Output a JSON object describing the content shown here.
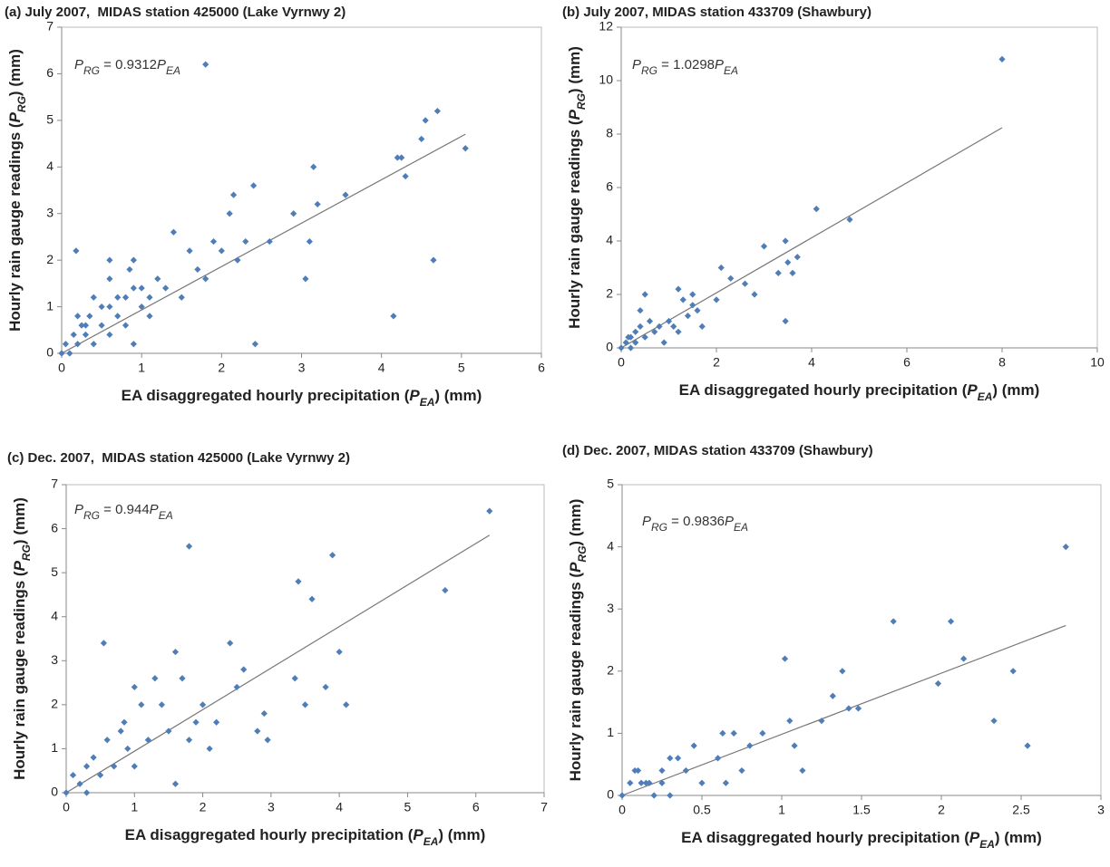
{
  "chart_data": [
    {
      "type": "scatter",
      "title": "(a) July 2007,  MIDAS station 425000 (Lake Vyrnwy 2)",
      "xlabel": [
        "EA disaggregated hourly precipitation (",
        "P",
        "EA",
        ") (mm)"
      ],
      "ylabel": [
        "Hourly rain gauge readings (",
        "P",
        "RG",
        ") (mm)"
      ],
      "fit": {
        "lhs": [
          "P",
          "RG"
        ],
        "eq": " = ",
        "slope": 0.9312,
        "rhs": [
          "P",
          "EA"
        ]
      },
      "color": "#4f7db8",
      "xlim": [
        0,
        6
      ],
      "xticks": [
        0,
        1,
        2,
        3,
        4,
        5,
        6
      ],
      "ylim": [
        0,
        7
      ],
      "yticks": [
        0,
        1,
        2,
        3,
        4,
        5,
        6,
        7
      ],
      "x": [
        0,
        0.05,
        0.1,
        0.15,
        0.2,
        0.25,
        0.3,
        0.35,
        0.4,
        0.5,
        0.6,
        0.7,
        0.8,
        0.9,
        1.0,
        1.1,
        1.2,
        0.2,
        0.3,
        0.5,
        0.6,
        0.7,
        0.8,
        0.9,
        1.0,
        0.4,
        0.6,
        0.85,
        1.3,
        1.4,
        1.5,
        1.6,
        1.7,
        1.8,
        1.9,
        2.0,
        2.1,
        2.15,
        2.2,
        2.3,
        2.4,
        2.6,
        2.9,
        3.05,
        3.1,
        3.15,
        3.2,
        3.55,
        4.15,
        4.2,
        4.25,
        4.3,
        4.5,
        4.55,
        4.65,
        4.7,
        5.05,
        1.8,
        0.18,
        2.42,
        0.6,
        0.9,
        1.1
      ],
      "y": [
        0,
        0.2,
        0,
        0.4,
        0.2,
        0.6,
        0.4,
        0.8,
        0.2,
        0.6,
        1.0,
        0.8,
        1.2,
        1.4,
        1.0,
        1.2,
        1.6,
        0.8,
        0.6,
        1.0,
        1.6,
        1.2,
        0.6,
        2.0,
        1.4,
        1.2,
        2.0,
        1.8,
        1.4,
        2.6,
        1.2,
        2.2,
        1.8,
        1.6,
        2.4,
        2.2,
        3.0,
        3.4,
        2.0,
        2.4,
        3.6,
        2.4,
        3.0,
        1.6,
        2.4,
        4.0,
        3.2,
        3.4,
        0.8,
        4.2,
        4.2,
        3.8,
        4.6,
        5.0,
        2.0,
        5.2,
        4.4,
        6.2,
        2.2,
        0.2,
        0.4,
        0.2,
        0.8
      ]
    },
    {
      "type": "scatter",
      "title": "(b) July 2007, MIDAS station 433709 (Shawbury)",
      "xlabel": [
        "EA disaggregated hourly precipitation (",
        "P",
        "EA",
        ") (mm)"
      ],
      "ylabel": [
        "Hourly rain gauge readings (",
        "P",
        "RG",
        ") (mm)"
      ],
      "fit": {
        "lhs": [
          "P",
          "RG"
        ],
        "eq": " = ",
        "slope": 1.0298,
        "rhs": [
          "P",
          "EA"
        ]
      },
      "color": "#4f7db8",
      "xlim": [
        0,
        10
      ],
      "xticks": [
        0,
        2,
        4,
        6,
        8,
        10
      ],
      "ylim": [
        0,
        12
      ],
      "yticks": [
        0,
        2,
        4,
        6,
        8,
        10,
        12
      ],
      "x": [
        0,
        0.1,
        0.2,
        0.3,
        0.4,
        0.5,
        0.6,
        0.7,
        0.8,
        0.9,
        1.0,
        1.1,
        1.2,
        1.3,
        1.4,
        1.5,
        1.6,
        1.7,
        2.1,
        2.3,
        2.6,
        2.8,
        3.0,
        3.3,
        3.45,
        3.5,
        3.6,
        3.7,
        4.1,
        4.8,
        8.0,
        0.5,
        0.3,
        1.2,
        1.5,
        3.45,
        2.0,
        0.2,
        0.15,
        0.4
      ],
      "y": [
        0,
        0.2,
        0.4,
        0.6,
        0.8,
        2.0,
        1.0,
        0.6,
        0.8,
        0.2,
        1.0,
        0.8,
        2.2,
        1.8,
        1.2,
        2.0,
        1.4,
        0.8,
        3.0,
        2.6,
        2.4,
        2.0,
        3.8,
        2.8,
        4.0,
        3.2,
        2.8,
        3.4,
        5.2,
        4.8,
        10.8,
        0.4,
        0.2,
        0.6,
        1.6,
        1.0,
        1.8,
        0,
        0.4,
        1.4
      ]
    },
    {
      "type": "scatter",
      "title": "(c) Dec. 2007,  MIDAS station 425000 (Lake Vyrnwy 2)",
      "xlabel": [
        "EA disaggregated hourly precipitation (",
        "P",
        "EA",
        ") (mm)"
      ],
      "ylabel": [
        "Hourly rain gauge readings (",
        "P",
        "RG",
        ") (mm)"
      ],
      "fit": {
        "lhs": [
          "P",
          "RG"
        ],
        "eq": " = ",
        "slope": 0.944,
        "rhs": [
          "P",
          "EA"
        ]
      },
      "color": "#4f7db8",
      "xlim": [
        0,
        7
      ],
      "xticks": [
        0,
        1,
        2,
        3,
        4,
        5,
        6,
        7
      ],
      "ylim": [
        0,
        7
      ],
      "yticks": [
        0,
        1,
        2,
        3,
        4,
        5,
        6,
        7
      ],
      "x": [
        0,
        0.1,
        0.2,
        0.3,
        0.4,
        0.5,
        0.6,
        0.7,
        0.8,
        0.9,
        1.0,
        1.1,
        1.2,
        1.3,
        1.4,
        1.5,
        1.6,
        1.7,
        1.8,
        1.9,
        2.0,
        2.1,
        2.2,
        2.4,
        2.5,
        2.6,
        2.8,
        2.9,
        2.95,
        3.35,
        3.4,
        3.5,
        3.6,
        3.8,
        3.9,
        4.0,
        4.1,
        5.55,
        6.2,
        0.55,
        1.8,
        1.6,
        1.0,
        0.3,
        0.85
      ],
      "y": [
        0,
        0.4,
        0.2,
        0.6,
        0.8,
        0.4,
        1.2,
        0.6,
        1.4,
        1.0,
        2.4,
        2.0,
        1.2,
        2.6,
        2.0,
        1.4,
        3.2,
        2.6,
        5.6,
        1.6,
        2.0,
        1.0,
        1.6,
        3.4,
        2.4,
        2.8,
        1.4,
        1.8,
        1.2,
        2.6,
        4.8,
        2.0,
        4.4,
        2.4,
        5.4,
        3.2,
        2.0,
        4.6,
        6.4,
        3.4,
        1.2,
        0.2,
        0.6,
        0,
        1.6
      ]
    },
    {
      "type": "scatter",
      "title": "(d) Dec. 2007, MIDAS station 433709 (Shawbury)",
      "xlabel": [
        "EA disaggregated hourly precipitation (",
        "P",
        "EA",
        ") (mm)"
      ],
      "ylabel": [
        "Hourly rain gauge readings (",
        "P",
        "RG",
        ") (mm)"
      ],
      "fit": {
        "lhs": [
          "P",
          "RG"
        ],
        "eq": " = ",
        "slope": 0.9836,
        "rhs": [
          "P",
          "EA"
        ]
      },
      "color": "#4f7db8",
      "xlim": [
        0,
        3
      ],
      "xticks": [
        0,
        0.5,
        1,
        1.5,
        2,
        2.5,
        3
      ],
      "ylim": [
        0,
        5
      ],
      "yticks": [
        0,
        1,
        2,
        3,
        4,
        5
      ],
      "x": [
        0,
        0.05,
        0.1,
        0.15,
        0.2,
        0.25,
        0.3,
        0.35,
        0.4,
        0.45,
        0.5,
        0.6,
        0.63,
        0.65,
        0.75,
        0.8,
        0.88,
        1.02,
        1.05,
        1.08,
        1.13,
        1.25,
        1.32,
        1.38,
        1.42,
        1.48,
        1.7,
        1.98,
        2.06,
        2.14,
        2.33,
        2.45,
        2.54,
        2.78,
        0.3,
        0.12,
        0.08,
        0.7,
        0.17,
        0.25
      ],
      "y": [
        0,
        0.2,
        0.4,
        0.2,
        0,
        0.4,
        0.6,
        0.6,
        0.4,
        0.8,
        0.2,
        0.6,
        1.0,
        0.2,
        0.4,
        0.8,
        1.0,
        2.2,
        1.2,
        0.8,
        0.4,
        1.2,
        1.6,
        2.0,
        1.4,
        1.4,
        2.8,
        1.8,
        2.8,
        2.2,
        1.2,
        2.0,
        0.8,
        4.0,
        0,
        0.2,
        0.4,
        1.0,
        0.2,
        0.2
      ]
    }
  ]
}
